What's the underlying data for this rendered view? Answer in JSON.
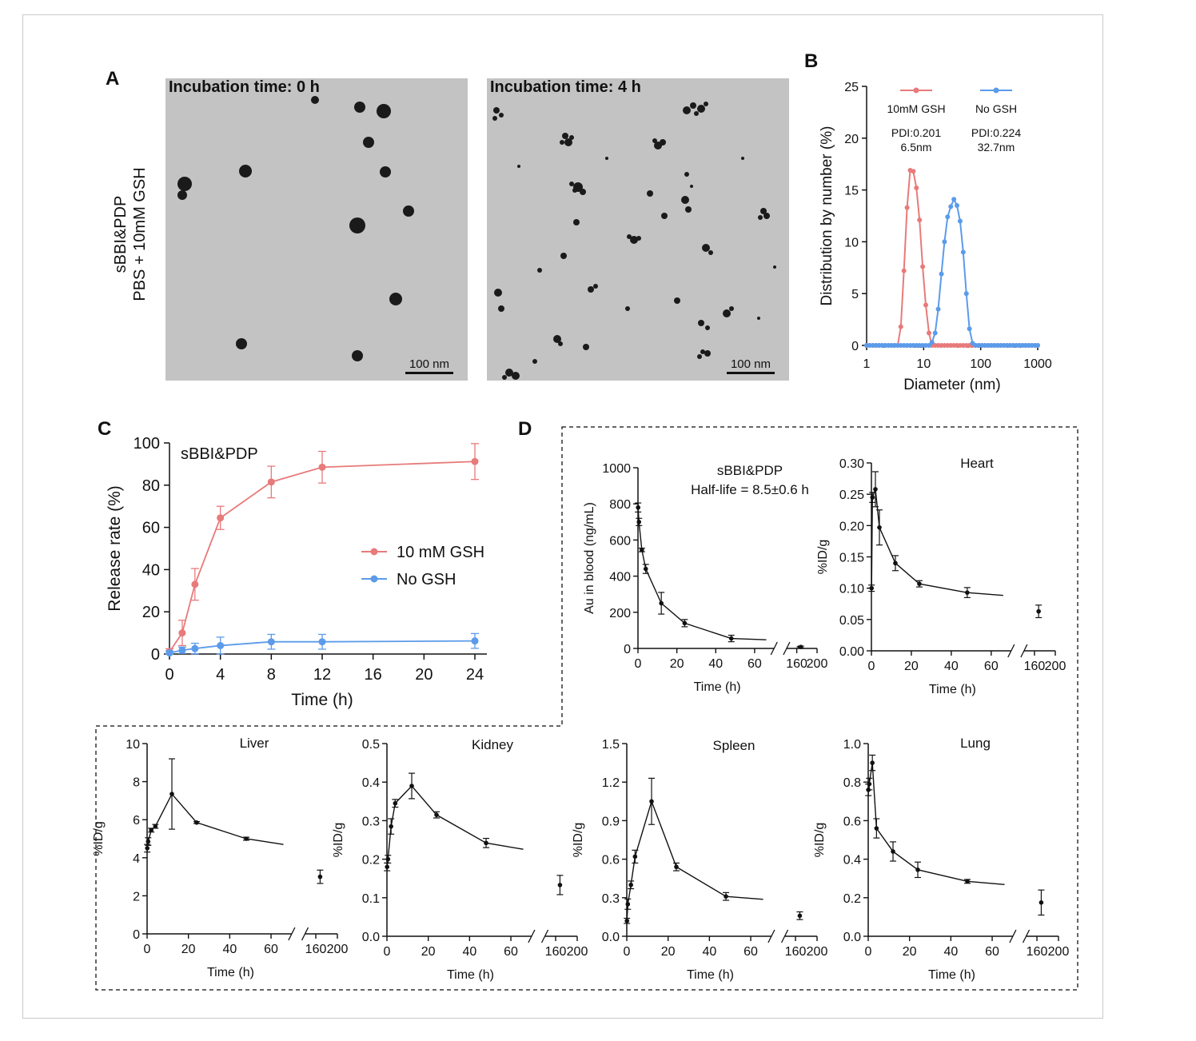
{
  "panels": {
    "A": {
      "label": "A",
      "sample_line1": "sBBI&PDP",
      "sample_line2": "PBS + 10mM GSH",
      "images": [
        {
          "title": "Incubation time: 0 h",
          "scale": "100 nm"
        },
        {
          "title": "Incubation time: 4 h",
          "scale": "100 nm"
        }
      ]
    },
    "B": {
      "label": "B"
    },
    "C": {
      "label": "C"
    },
    "D": {
      "label": "D"
    }
  },
  "colors": {
    "red": "#e87a7a",
    "blue": "#5b9bea",
    "black": "#111111"
  },
  "chart_data": [
    {
      "id": "B",
      "type": "line",
      "xscale": "log",
      "xlim": [
        1,
        1000
      ],
      "ylim": [
        0,
        25
      ],
      "xticks": [
        "1",
        "10",
        "100",
        "1000"
      ],
      "yticks": [
        "0",
        "5",
        "10",
        "15",
        "20",
        "25"
      ],
      "xlabel": "Diameter (nm)",
      "ylabel": "Distribution by number (%)",
      "series": [
        {
          "name": "10mM GSH",
          "pdi": "PDI:0.201",
          "size": "6.5nm",
          "color": "#e87a7a",
          "x": [
            1,
            1.13,
            1.28,
            1.45,
            1.65,
            1.87,
            2.12,
            2.41,
            2.73,
            3.09,
            3.51,
            3.98,
            4.51,
            5.12,
            5.81,
            6.58,
            7.47,
            8.47,
            9.61,
            10.9,
            12.4,
            14.0,
            15.9,
            18.0,
            20.5,
            23.2,
            26.3,
            29.9,
            33.9,
            38.4,
            43.6,
            49.4,
            56.1,
            63.6,
            72.1,
            81.8,
            92.8,
            105,
            119,
            136,
            154,
            174,
            198,
            224,
            254,
            289,
            327,
            371,
            421,
            478,
            542,
            615,
            697,
            791,
            897,
            1000
          ],
          "y": [
            0,
            0,
            0,
            0,
            0,
            0,
            0,
            0,
            0,
            0,
            0,
            1.8,
            7.2,
            13.3,
            16.9,
            16.8,
            15.2,
            12.1,
            7.6,
            3.9,
            1.2,
            0,
            0,
            0,
            0,
            0,
            0,
            0,
            0,
            0,
            0,
            0,
            0,
            0,
            0,
            0,
            0,
            0,
            0,
            0,
            0,
            0,
            0,
            0,
            0,
            0,
            0,
            0,
            0,
            0,
            0,
            0,
            0,
            0,
            0,
            0
          ]
        },
        {
          "name": "No GSH",
          "pdi": "PDI:0.224",
          "size": "32.7nm",
          "color": "#5b9bea",
          "x": [
            1,
            1.13,
            1.28,
            1.45,
            1.65,
            1.87,
            2.12,
            2.41,
            2.73,
            3.09,
            3.51,
            3.98,
            4.51,
            5.12,
            5.81,
            6.58,
            7.47,
            8.47,
            9.61,
            10.9,
            12.4,
            14.0,
            15.9,
            18.0,
            20.5,
            23.2,
            26.3,
            29.9,
            33.9,
            38.4,
            43.6,
            49.4,
            56.1,
            63.6,
            72.1,
            81.8,
            92.8,
            105,
            119,
            136,
            154,
            174,
            198,
            224,
            254,
            289,
            327,
            371,
            421,
            478,
            542,
            615,
            697,
            791,
            897,
            1000
          ],
          "y": [
            0,
            0,
            0,
            0,
            0,
            0,
            0,
            0,
            0,
            0,
            0,
            0,
            0,
            0,
            0,
            0,
            0,
            0,
            0,
            0,
            0,
            0.3,
            1.2,
            3.5,
            6.9,
            10.0,
            12.4,
            13.4,
            14.1,
            13.5,
            12.0,
            9.0,
            5.0,
            1.6,
            0.2,
            0,
            0,
            0,
            0,
            0,
            0,
            0,
            0,
            0,
            0,
            0,
            0,
            0,
            0,
            0,
            0,
            0,
            0,
            0,
            0,
            0
          ]
        }
      ]
    },
    {
      "id": "C",
      "type": "line",
      "annotation": "sBBI&PDP",
      "xlim": [
        0,
        24
      ],
      "ylim": [
        0,
        100
      ],
      "xticks": [
        "0",
        "4",
        "8",
        "12",
        "16",
        "20",
        "24"
      ],
      "yticks": [
        "0",
        "20",
        "40",
        "60",
        "80",
        "100"
      ],
      "xlabel": "Time (h)",
      "ylabel": "Release rate (%)",
      "legend": "right",
      "series": [
        {
          "name": "10 mM GSH",
          "color": "#e87a7a",
          "x": [
            0,
            1,
            2,
            4,
            8,
            12,
            24
          ],
          "y": [
            1,
            10,
            33,
            64.5,
            81.5,
            88.5,
            91.2
          ],
          "err": [
            1.5,
            6,
            7.5,
            5.5,
            7.5,
            7.5,
            8.5
          ]
        },
        {
          "name": "No GSH",
          "color": "#5b9bea",
          "x": [
            0,
            1,
            2,
            4,
            8,
            12,
            24
          ],
          "y": [
            0.5,
            1.8,
            2.6,
            4,
            5.8,
            5.8,
            6.2
          ],
          "err": [
            1,
            1.5,
            2.5,
            4,
            3.5,
            3.5,
            3.5
          ]
        }
      ]
    },
    {
      "id": "D-blood",
      "type": "line",
      "title": "sBBI&PDP",
      "subtitle": "Half-life = 8.5±0.6 h",
      "ylabel": "Au in blood (ng/mL)",
      "xlabel": "Time (h)",
      "ylim": [
        0,
        1000
      ],
      "yticks": [
        "0",
        "200",
        "400",
        "600",
        "800",
        "1000"
      ],
      "xticks_left": [
        "0",
        "20",
        "40",
        "60"
      ],
      "xticks_right": [
        "160",
        "200"
      ],
      "x": [
        0.08,
        0.5,
        2,
        4,
        12,
        24,
        48,
        168
      ],
      "y": [
        780,
        700,
        545,
        440,
        250,
        140,
        55,
        8
      ],
      "err": [
        25,
        20,
        10,
        25,
        60,
        20,
        18,
        5
      ]
    },
    {
      "id": "D-heart",
      "type": "line",
      "title": "Heart",
      "ylabel": "%ID/g",
      "xlabel": "Time (h)",
      "ylim": [
        0,
        0.3
      ],
      "yticks": [
        "0.00",
        "0.05",
        "0.10",
        "0.15",
        "0.20",
        "0.25",
        "0.30"
      ],
      "xticks_left": [
        "0",
        "20",
        "40",
        "60"
      ],
      "xticks_right": [
        "160",
        "200"
      ],
      "x": [
        0.08,
        0.5,
        2,
        4,
        12,
        24,
        48,
        168
      ],
      "y": [
        0.1,
        0.245,
        0.258,
        0.197,
        0.14,
        0.107,
        0.093,
        0.063
      ],
      "err": [
        0.005,
        0.008,
        0.028,
        0.028,
        0.012,
        0.005,
        0.008,
        0.01
      ]
    },
    {
      "id": "D-liver",
      "type": "line",
      "title": "Liver",
      "ylabel": "%ID/g",
      "xlabel": "Time (h)",
      "ylim": [
        0,
        10
      ],
      "yticks": [
        "0",
        "2",
        "4",
        "6",
        "8",
        "10"
      ],
      "xticks_left": [
        "0",
        "20",
        "40",
        "60"
      ],
      "xticks_right": [
        "160",
        "200"
      ],
      "x": [
        0.08,
        0.5,
        2,
        4,
        12,
        24,
        48,
        168
      ],
      "y": [
        4.5,
        4.85,
        5.45,
        5.65,
        7.35,
        5.85,
        5.0,
        3.0
      ],
      "err": [
        0.2,
        0.2,
        0.1,
        0.1,
        1.85,
        0.05,
        0.08,
        0.35
      ]
    },
    {
      "id": "D-kidney",
      "type": "line",
      "title": "Kidney",
      "ylabel": "%ID/g",
      "xlabel": "Time (h)",
      "ylim": [
        0,
        0.5
      ],
      "yticks": [
        "0.0",
        "0.1",
        "0.2",
        "0.3",
        "0.4",
        "0.5"
      ],
      "xticks_left": [
        "0",
        "20",
        "40",
        "60"
      ],
      "xticks_right": [
        "160",
        "200"
      ],
      "x": [
        0.08,
        0.5,
        2,
        4,
        12,
        24,
        48,
        168
      ],
      "y": [
        0.18,
        0.2,
        0.285,
        0.345,
        0.39,
        0.315,
        0.242,
        0.133
      ],
      "err": [
        0.01,
        0.01,
        0.02,
        0.01,
        0.033,
        0.008,
        0.012,
        0.025
      ]
    },
    {
      "id": "D-spleen",
      "type": "line",
      "title": "Spleen",
      "ylabel": "%ID/g",
      "xlabel": "Time (h)",
      "ylim": [
        0,
        1.5
      ],
      "yticks": [
        "0.0",
        "0.3",
        "0.6",
        "0.9",
        "1.2",
        "1.5"
      ],
      "xticks_left": [
        "0",
        "20",
        "40",
        "60"
      ],
      "xticks_right": [
        "160",
        "200"
      ],
      "x": [
        0.08,
        0.5,
        2,
        4,
        12,
        24,
        48,
        168
      ],
      "y": [
        0.12,
        0.25,
        0.4,
        0.62,
        1.05,
        0.54,
        0.31,
        0.16
      ],
      "err": [
        0.02,
        0.04,
        0.03,
        0.05,
        0.18,
        0.03,
        0.03,
        0.03
      ]
    },
    {
      "id": "D-lung",
      "type": "line",
      "title": "Lung",
      "ylabel": "%ID/g",
      "xlabel": "Time (h)",
      "ylim": [
        0,
        1.0
      ],
      "yticks": [
        "0.0",
        "0.2",
        "0.4",
        "0.6",
        "0.8",
        "1.0"
      ],
      "xticks_left": [
        "0",
        "20",
        "40",
        "60"
      ],
      "xticks_right": [
        "160",
        "200"
      ],
      "x": [
        0.08,
        0.5,
        2,
        4,
        12,
        24,
        48,
        168
      ],
      "y": [
        0.76,
        0.79,
        0.9,
        0.56,
        0.44,
        0.345,
        0.285,
        0.175
      ],
      "err": [
        0.03,
        0.03,
        0.04,
        0.05,
        0.05,
        0.04,
        0.01,
        0.065
      ]
    }
  ]
}
